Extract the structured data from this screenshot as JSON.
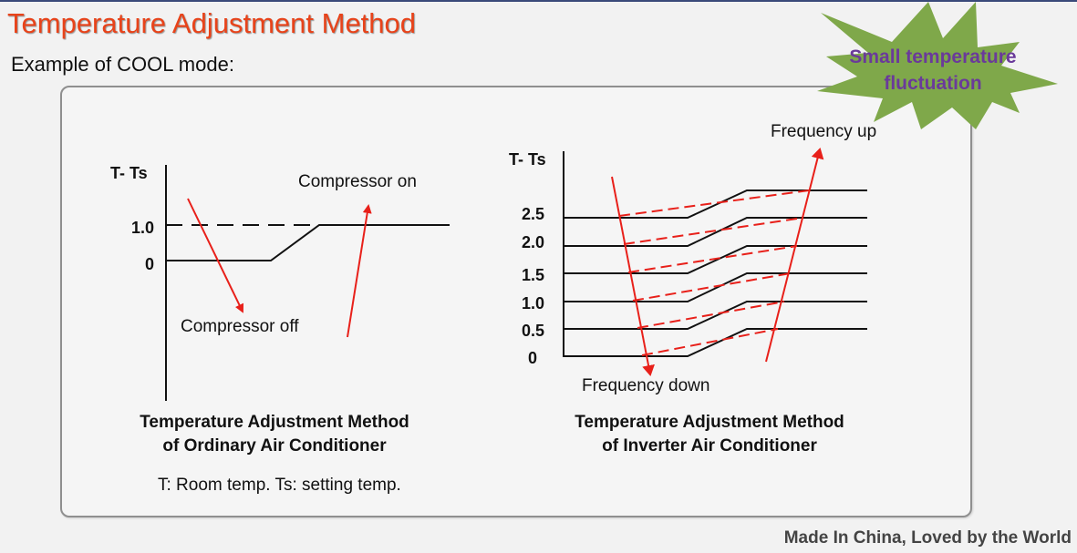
{
  "header": {
    "title": "Temperature Adjustment Method",
    "subtitle": "Example of COOL mode:"
  },
  "callout": {
    "line1": "Small temperature",
    "line2": "fluctuation"
  },
  "ordinary": {
    "y_axis_label": "T- Ts",
    "ticks": [
      "1.0",
      "0"
    ],
    "compressor_on": "Compressor on",
    "compressor_off": "Compressor off",
    "caption_line1": "Temperature Adjustment Method",
    "caption_line2": "of Ordinary Air Conditioner",
    "note": "T: Room temp. Ts: setting temp."
  },
  "inverter": {
    "y_axis_label": "T- Ts",
    "ticks": [
      "2.5",
      "2.0",
      "1.5",
      "1.0",
      "0.5",
      "0"
    ],
    "frequency_up": "Frequency up",
    "frequency_down": "Frequency down",
    "caption_line1": "Temperature Adjustment Method",
    "caption_line2": "of Inverter Air Conditioner"
  },
  "footer": {
    "slogan": "Made In China, Loved by the World"
  },
  "colors": {
    "title": "#e8431a",
    "arrow": "#e8201a",
    "star": "#7fa84a",
    "star_text": "#6a3a9a"
  }
}
